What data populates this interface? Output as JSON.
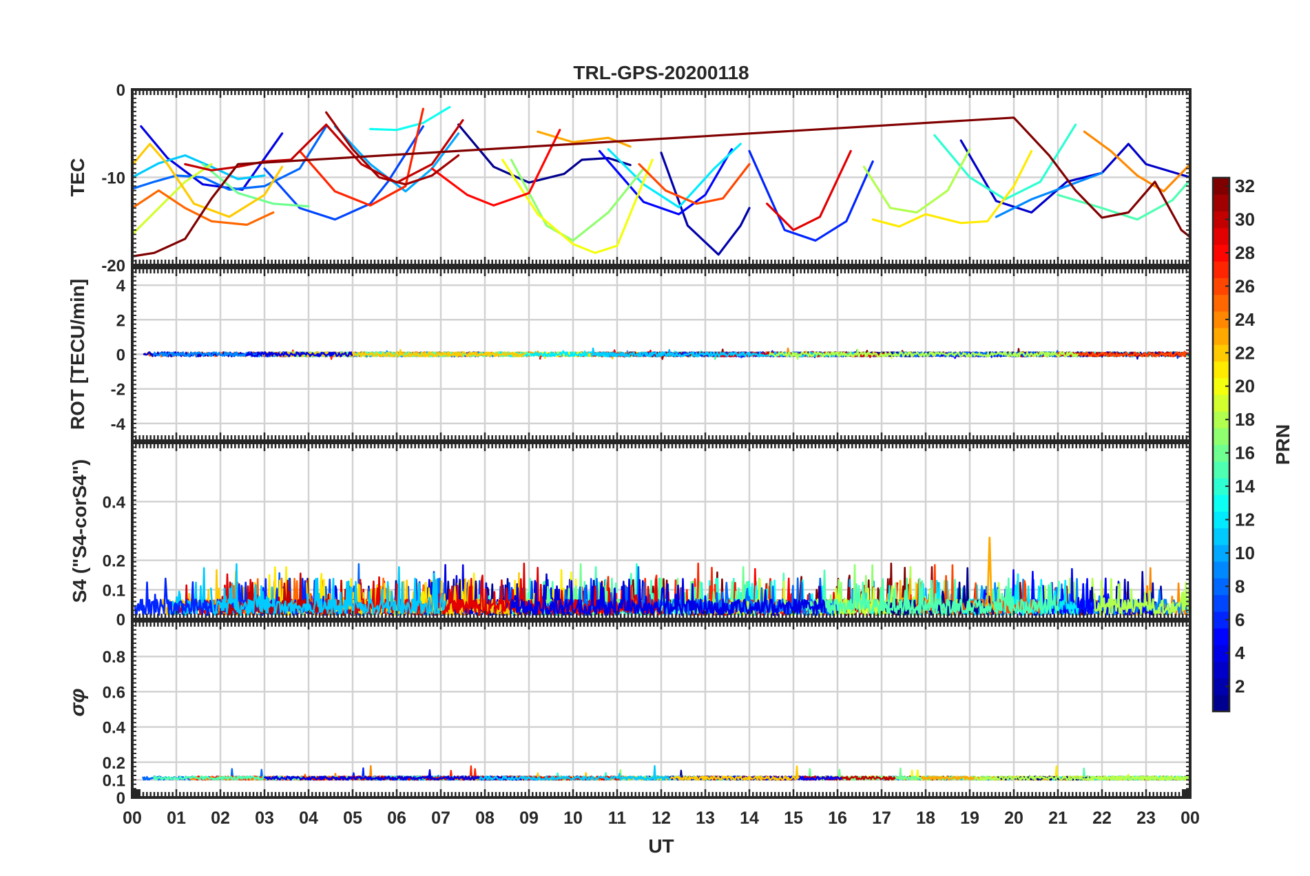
{
  "chart_data": {
    "type": "line",
    "title": "TRL-GPS-20200118",
    "xlabel": "UT",
    "x_tick_labels": [
      "00",
      "01",
      "02",
      "03",
      "04",
      "05",
      "06",
      "07",
      "08",
      "09",
      "10",
      "11",
      "12",
      "13",
      "14",
      "15",
      "16",
      "17",
      "18",
      "19",
      "20",
      "21",
      "22",
      "23",
      "00"
    ],
    "xlim": [
      0,
      24
    ],
    "grid": true,
    "colorbar": {
      "label": "PRN",
      "range": [
        1,
        32
      ],
      "ticks": [
        "2",
        "4",
        "6",
        "8",
        "10",
        "12",
        "14",
        "16",
        "18",
        "20",
        "22",
        "24",
        "26",
        "28",
        "30",
        "32"
      ],
      "colormap": "jet",
      "colormap_stops": [
        "#00008f",
        "#0000ff",
        "#0080ff",
        "#00ffff",
        "#80ff80",
        "#ffff00",
        "#ff8000",
        "#ff0000",
        "#800000"
      ]
    },
    "panels": [
      {
        "id": "tec",
        "ylabel": "TEC",
        "ylim": [
          -20,
          0
        ],
        "y_ticks": [
          "0",
          "-10",
          "-20"
        ],
        "y_tick_values": [
          0,
          -10,
          -20
        ],
        "series": [
          {
            "prn": 1,
            "x": [
              7.4,
              8.2,
              9.0,
              9.8,
              10.2,
              10.8,
              11.3
            ],
            "y": [
              -4,
              -8.8,
              -10.6,
              -9.6,
              -8,
              -7.8,
              -8.6
            ]
          },
          {
            "prn": 2,
            "x": [
              12.0,
              12.6,
              13.3,
              13.8,
              14.0
            ],
            "y": [
              -7.2,
              -15.5,
              -18.8,
              -15.5,
              -13.5
            ]
          },
          {
            "prn": 3,
            "x": [
              18.8,
              19.6,
              20.4,
              21.2,
              22.0,
              22.6,
              23.0,
              24.0
            ],
            "y": [
              -5.8,
              -12.7,
              -14.0,
              -10.5,
              -9.5,
              -6.2,
              -8.5,
              -10.0
            ]
          },
          {
            "prn": 4,
            "x": [
              0.2,
              0.8,
              1.6,
              2.5,
              3.4
            ],
            "y": [
              -4.2,
              -7.8,
              -10.8,
              -11.4,
              -5.0
            ]
          },
          {
            "prn": 5,
            "x": [
              10.6,
              11.6,
              12.4,
              13.0,
              13.6
            ],
            "y": [
              -7.0,
              -12.8,
              -14.2,
              -12.0,
              -6.8
            ]
          },
          {
            "prn": 6,
            "x": [
              14.0,
              14.8,
              15.5,
              16.2,
              16.8
            ],
            "y": [
              -7.0,
              -16.0,
              -17.2,
              -15.0,
              -8.2
            ]
          },
          {
            "prn": 7,
            "x": [
              3.0,
              3.8,
              4.6,
              5.4,
              5.8,
              6.6
            ],
            "y": [
              -9.0,
              -13.5,
              -14.8,
              -13.0,
              -10.5,
              -4.2
            ]
          },
          {
            "prn": 8,
            "x": [
              0.0,
              0.5,
              1.0,
              1.6,
              2.2,
              3.0,
              3.8,
              4.4
            ],
            "y": [
              -11.3,
              -10.5,
              -9.8,
              -10.0,
              -11.4,
              -11.0,
              -9.0,
              -4.2
            ]
          },
          {
            "prn": 9,
            "x": [
              19.6,
              20.4,
              21.2,
              22.0
            ],
            "y": [
              -14.5,
              -12.5,
              -11.0,
              -9.5
            ]
          },
          {
            "prn": 10,
            "x": [
              4.6,
              5.4,
              6.2,
              6.8,
              7.4
            ],
            "y": [
              -4.2,
              -8.5,
              -11.6,
              -9.0,
              -5.0
            ]
          },
          {
            "prn": 11,
            "x": [
              0.0,
              0.6,
              1.2,
              1.8,
              2.4,
              3.0
            ],
            "y": [
              -10.0,
              -8.4,
              -7.5,
              -8.8,
              -10.2,
              -9.8
            ]
          },
          {
            "prn": 12,
            "x": [
              10.8,
              11.6,
              12.4,
              13.2,
              13.8
            ],
            "y": [
              -6.8,
              -10.8,
              -13.4,
              -9.0,
              -6.2
            ]
          },
          {
            "prn": 13,
            "x": [
              5.4,
              6.0,
              6.6,
              7.2
            ],
            "y": [
              -4.5,
              -4.6,
              -3.8,
              -2.0
            ]
          },
          {
            "prn": 14,
            "x": [
              18.2,
              19.0,
              19.8,
              20.6,
              21.4
            ],
            "y": [
              -5.2,
              -10.0,
              -12.5,
              -10.5,
              -4.0
            ]
          },
          {
            "prn": 15,
            "x": [
              21.0,
              22.0,
              22.8,
              23.6,
              24.0
            ],
            "y": [
              -12.0,
              -13.5,
              -14.8,
              -12.6,
              -10.3
            ]
          },
          {
            "prn": 16,
            "x": [
              1.6,
              2.4,
              3.2,
              4.0
            ],
            "y": [
              -8.5,
              -11.8,
              -13.0,
              -13.3
            ]
          },
          {
            "prn": 17,
            "x": [
              8.6,
              9.4,
              10.0,
              10.8,
              11.6
            ],
            "y": [
              -8.0,
              -15.5,
              -17.2,
              -14.0,
              -9.0
            ]
          },
          {
            "prn": 18,
            "x": [
              16.6,
              17.2,
              17.8,
              18.5,
              19.0
            ],
            "y": [
              -8.8,
              -13.5,
              -14.0,
              -11.5,
              -6.8
            ]
          },
          {
            "prn": 19,
            "x": [
              0.0,
              0.6,
              1.2,
              1.8
            ],
            "y": [
              -16.5,
              -13.5,
              -10.5,
              -8.5
            ]
          },
          {
            "prn": 20,
            "x": [
              8.4,
              9.2,
              10.0,
              10.5,
              11.0,
              11.8
            ],
            "y": [
              -8.0,
              -14.2,
              -17.6,
              -18.6,
              -17.8,
              -8.0
            ]
          },
          {
            "prn": 21,
            "x": [
              16.8,
              17.4,
              18.0,
              18.8,
              19.4,
              20.0,
              20.4
            ],
            "y": [
              -14.8,
              -15.6,
              -14.2,
              -15.2,
              -15.0,
              -11.0,
              -7.0
            ]
          },
          {
            "prn": 22,
            "x": [
              0.0,
              0.4,
              0.8,
              1.4,
              2.2,
              3.0,
              3.4
            ],
            "y": [
              -8.6,
              -6.2,
              -8.5,
              -13.0,
              -14.5,
              -12.0,
              -8.8
            ]
          },
          {
            "prn": 23,
            "x": [
              9.2,
              10.0,
              10.8,
              11.3
            ],
            "y": [
              -4.8,
              -6.0,
              -5.5,
              -6.5
            ]
          },
          {
            "prn": 24,
            "x": [
              21.6,
              22.2,
              22.8,
              23.4,
              24.0
            ],
            "y": [
              -4.8,
              -7.0,
              -9.8,
              -11.6,
              -8.5
            ]
          },
          {
            "prn": 25,
            "x": [
              0.0,
              0.6,
              1.2,
              1.8,
              2.6,
              3.2
            ],
            "y": [
              -13.5,
              -11.5,
              -13.5,
              -15.0,
              -15.4,
              -14.0
            ]
          },
          {
            "prn": 26,
            "x": [
              11.5,
              12.1,
              12.8,
              13.4,
              14.0
            ],
            "y": [
              -8.5,
              -11.5,
              -13.0,
              -12.4,
              -8.5
            ]
          },
          {
            "prn": 27,
            "x": [
              3.8,
              4.6,
              5.4,
              6.2,
              6.6
            ],
            "y": [
              -7.0,
              -11.6,
              -13.2,
              -11.0,
              -2.2
            ]
          },
          {
            "prn": 28,
            "x": [
              6.8,
              7.6,
              8.2,
              9.0,
              9.7
            ],
            "y": [
              -9.0,
              -12.0,
              -13.2,
              -11.8,
              -4.6
            ]
          },
          {
            "prn": 29,
            "x": [
              14.4,
              15.0,
              15.6,
              16.3
            ],
            "y": [
              -13.0,
              -16.0,
              -14.5,
              -7.0
            ]
          },
          {
            "prn": 30,
            "x": [
              1.2,
              1.8,
              2.4,
              3.0,
              3.6,
              4.4,
              5.2,
              6.0,
              6.8,
              7.5
            ],
            "y": [
              -8.5,
              -9.2,
              -8.8,
              -8.2,
              -8.0,
              -4.0,
              -8.5,
              -10.6,
              -8.5,
              -3.5
            ]
          },
          {
            "prn": 31,
            "x": [
              4.4,
              5.0,
              5.6,
              6.2,
              6.8,
              7.4
            ],
            "y": [
              -2.6,
              -6.8,
              -10.0,
              -10.8,
              -9.8,
              -7.5
            ]
          },
          {
            "prn": 32,
            "x": [
              0.0,
              0.5,
              1.2,
              1.8,
              2.4,
              20.0,
              20.8,
              21.4,
              22.0,
              22.6,
              23.2,
              23.8,
              24.0
            ],
            "y": [
              -19.0,
              -18.6,
              -17.0,
              -12.4,
              -8.5,
              -3.2,
              -7.5,
              -11.5,
              -14.6,
              -14.0,
              -10.5,
              -16.0,
              -16.8
            ]
          }
        ]
      },
      {
        "id": "rot",
        "ylabel": "ROT [TECU/min]",
        "ylim": [
          -5,
          5
        ],
        "y_ticks": [
          "4",
          "2",
          "0",
          "-2",
          "-4"
        ],
        "y_tick_values": [
          4,
          2,
          0,
          -2,
          -4
        ],
        "baseline": 0,
        "noise_amplitude": 0.25,
        "spike_max": 0.5
      },
      {
        "id": "s4",
        "ylabel": "S4 (\"S4-corS4\")",
        "ylim": [
          0,
          0.6
        ],
        "y_ticks": [
          "0.4",
          "0.2",
          "0.1",
          "0"
        ],
        "y_tick_values": [
          0.4,
          0.2,
          0.1,
          0
        ],
        "baseline": 0.045,
        "noise_amplitude": 0.09,
        "spike_max": 0.28,
        "peak_event": {
          "x": 19.45,
          "y": 0.28,
          "prn": 23
        }
      },
      {
        "id": "sigma_phi",
        "ylabel": "σφ",
        "ylim": [
          0,
          1.0
        ],
        "y_ticks": [
          "0.8",
          "0.6",
          "0.4",
          "0.2",
          "0.1",
          "0"
        ],
        "y_tick_values": [
          0.8,
          0.6,
          0.4,
          0.2,
          0.1,
          0
        ],
        "baseline": 0.11,
        "noise_amplitude": 0.02,
        "spike_max": 0.18
      }
    ]
  }
}
